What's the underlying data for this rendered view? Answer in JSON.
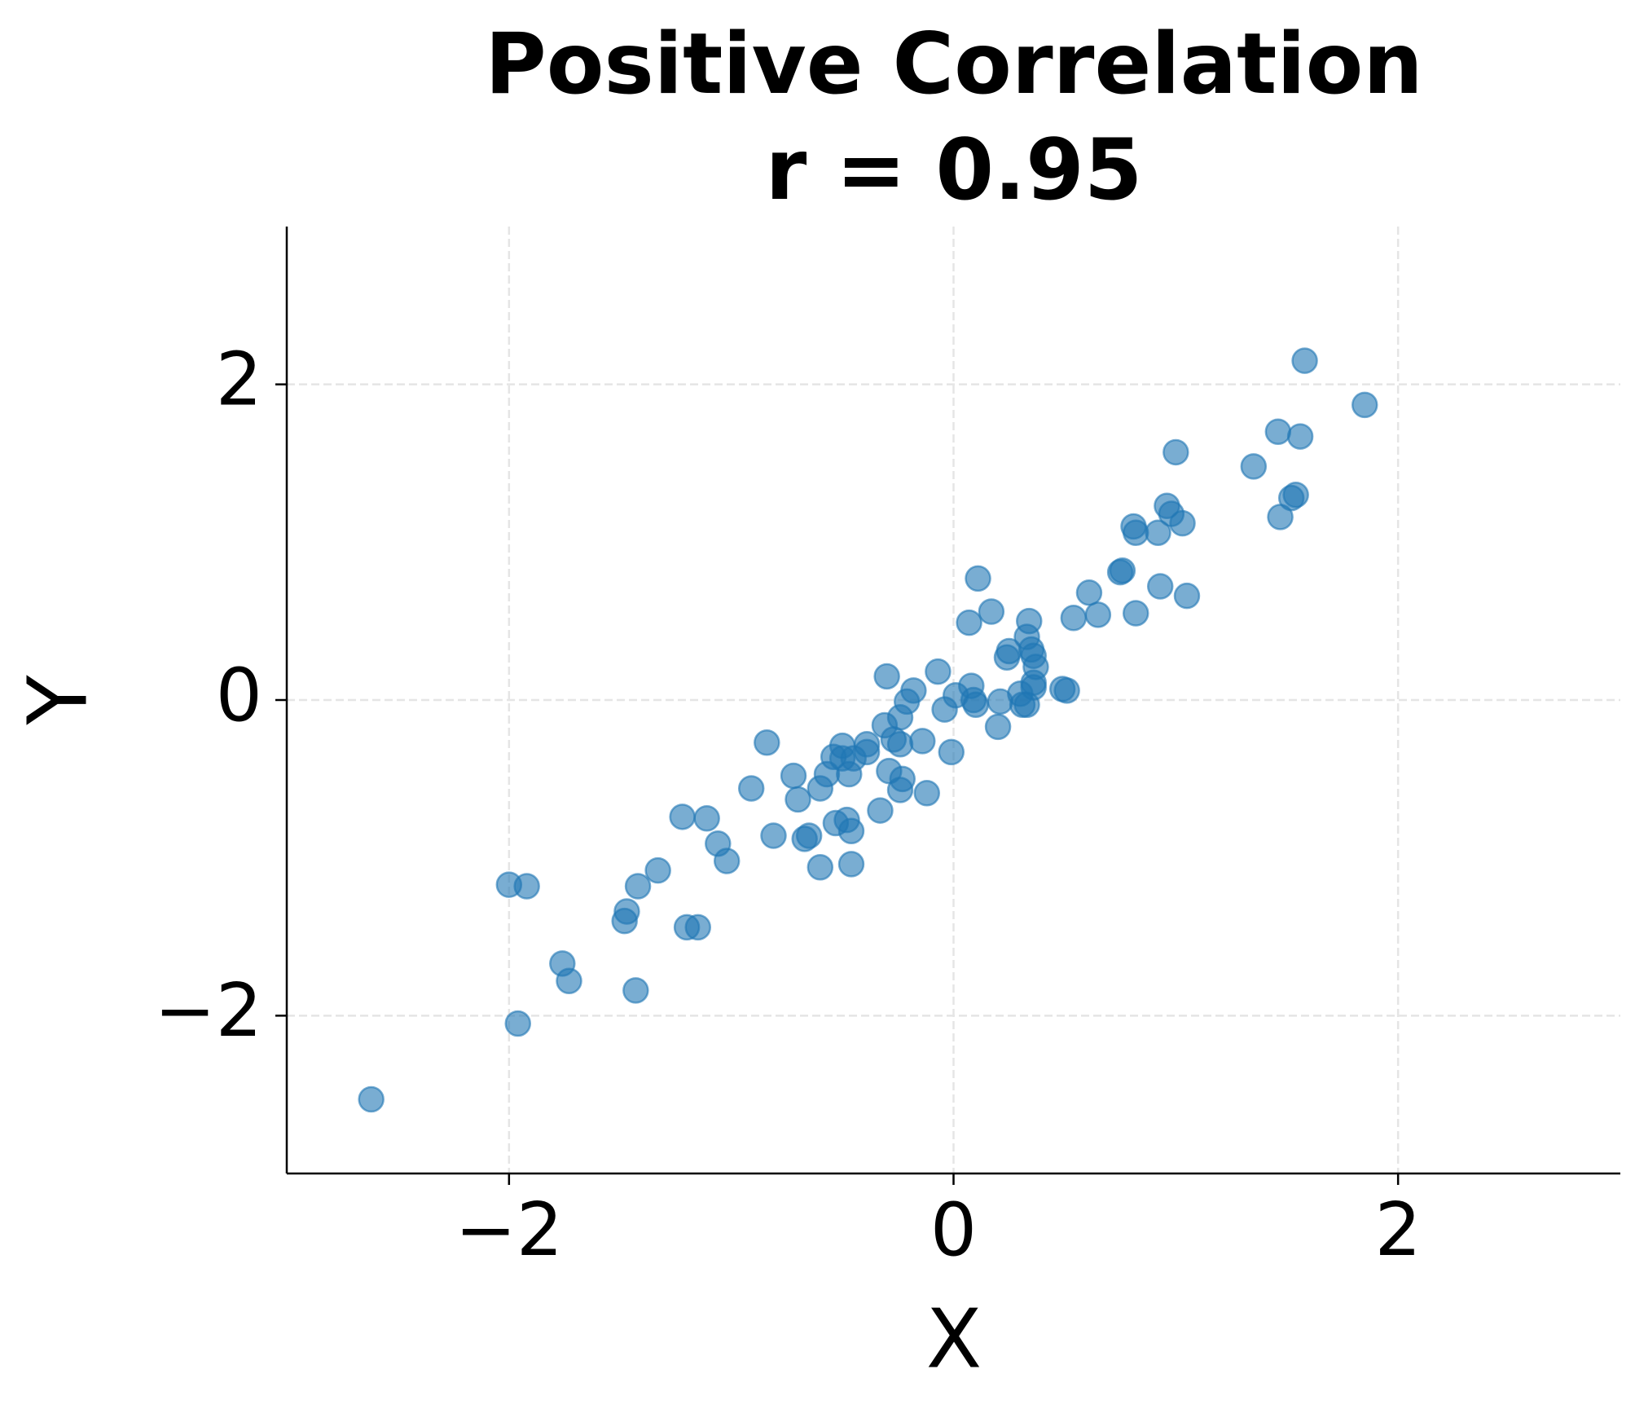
{
  "chart_data": {
    "type": "scatter",
    "title": "Positive Correlation\nr = 0.95",
    "x_label": "X",
    "y_label": "Y",
    "color": "#1f77b4",
    "grid": true,
    "xlim": [
      -3,
      3
    ],
    "ylim": [
      -3,
      3
    ],
    "xticks": [
      {
        "value": -2,
        "label": "−2"
      },
      0,
      2
    ],
    "yticks": [
      {
        "value": -2,
        "label": "−2"
      },
      0,
      2
    ],
    "x": [
      -2.62,
      -2.0,
      -1.92,
      -1.96,
      -1.76,
      -1.73,
      -1.43,
      -1.48,
      -1.47,
      -1.42,
      -1.33,
      -1.22,
      -1.11,
      -1.2,
      -1.15,
      -1.06,
      -1.02,
      -0.91,
      -0.84,
      -0.81,
      -0.72,
      -0.7,
      -0.67,
      -0.65,
      -0.6,
      -0.6,
      -0.57,
      -0.54,
      -0.53,
      -0.5,
      -0.5,
      -0.48,
      -0.47,
      -0.46,
      -0.46,
      -0.45,
      -0.39,
      -0.39,
      -0.33,
      -0.31,
      -0.3,
      -0.29,
      -0.27,
      -0.24,
      -0.24,
      -0.23,
      -0.24,
      -0.21,
      -0.18,
      -0.14,
      -0.12,
      -0.07,
      -0.04,
      -0.01,
      0.01,
      0.07,
      0.08,
      0.09,
      0.1,
      0.11,
      0.17,
      0.2,
      0.21,
      0.24,
      0.25,
      0.3,
      0.31,
      0.33,
      0.33,
      0.34,
      0.35,
      0.36,
      0.36,
      0.36,
      0.37,
      0.49,
      0.51,
      0.54,
      0.61,
      0.65,
      0.75,
      0.76,
      0.81,
      0.82,
      0.82,
      0.92,
      0.93,
      0.96,
      0.98,
      1.0,
      1.03,
      1.05,
      1.35,
      1.46,
      1.47,
      1.52,
      1.54,
      1.56,
      1.58,
      1.85
    ],
    "y": [
      -2.53,
      -1.17,
      -1.18,
      -2.05,
      -1.67,
      -1.78,
      -1.84,
      -1.4,
      -1.34,
      -1.18,
      -1.08,
      -0.74,
      -0.75,
      -1.44,
      -1.44,
      -0.91,
      -1.02,
      -0.56,
      -0.27,
      -0.86,
      -0.48,
      -0.63,
      -0.88,
      -0.86,
      -1.06,
      -0.56,
      -0.47,
      -0.36,
      -0.78,
      -0.29,
      -0.37,
      -0.76,
      -0.47,
      -0.83,
      -1.04,
      -0.37,
      -0.28,
      -0.33,
      -0.7,
      -0.16,
      0.15,
      -0.45,
      -0.25,
      -0.28,
      -0.57,
      -0.5,
      -0.11,
      -0.01,
      0.06,
      -0.26,
      -0.59,
      0.18,
      -0.06,
      -0.33,
      0.03,
      0.49,
      0.09,
      0.0,
      -0.03,
      0.77,
      0.56,
      -0.17,
      -0.01,
      0.27,
      0.31,
      0.04,
      -0.03,
      0.4,
      -0.03,
      0.5,
      0.32,
      0.08,
      0.28,
      0.11,
      0.21,
      0.07,
      0.06,
      0.52,
      0.68,
      0.54,
      0.81,
      0.82,
      1.1,
      1.06,
      0.55,
      1.06,
      0.72,
      1.23,
      1.18,
      1.57,
      1.12,
      0.66,
      1.48,
      1.7,
      1.16,
      1.28,
      1.3,
      1.67,
      2.15,
      1.87
    ]
  }
}
